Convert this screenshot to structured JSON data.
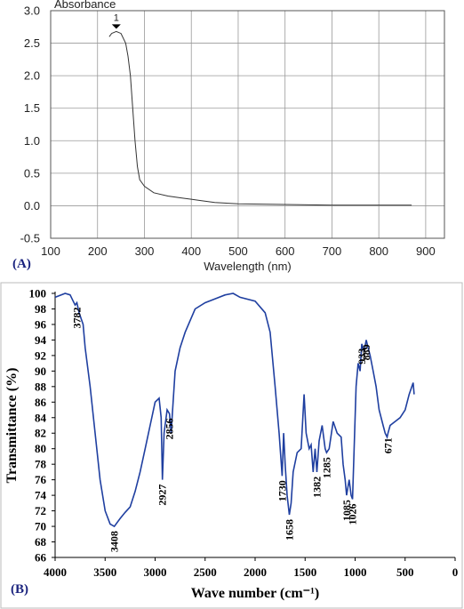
{
  "chart_data": [
    {
      "type": "line",
      "panel_label": "(A)",
      "ylabel": "Absorbance",
      "xlabel": "Wavelength (nm)",
      "color": "#333333",
      "grid": true,
      "xlim": [
        100,
        940
      ],
      "ylim": [
        -0.5,
        3.0
      ],
      "xticks": [
        100,
        200,
        300,
        400,
        500,
        600,
        700,
        800,
        900
      ],
      "yticks": [
        -0.5,
        {
          "value": 0.0,
          "label": "0.0"
        },
        0.5,
        {
          "value": 1.0,
          "label": "1.0"
        },
        1.5,
        {
          "value": 2.0,
          "label": "2.0"
        },
        2.5,
        {
          "value": 3.0,
          "label": "3.0"
        }
      ],
      "x": [
        225,
        230,
        240,
        250,
        260,
        265,
        270,
        275,
        280,
        285,
        290,
        300,
        320,
        350,
        380,
        400,
        420,
        450,
        500,
        600,
        700,
        870
      ],
      "values": [
        2.6,
        2.65,
        2.68,
        2.65,
        2.5,
        2.3,
        2.0,
        1.5,
        1.0,
        0.6,
        0.4,
        0.3,
        0.2,
        0.15,
        0.12,
        0.1,
        0.08,
        0.05,
        0.03,
        0.02,
        0.01,
        0.01
      ],
      "annotations": [
        "1"
      ]
    },
    {
      "type": "line",
      "panel_label": "(B)",
      "ylabel": "Transmittance (%)",
      "xlabel": "Wave number (cm⁻¹)",
      "color": "#1f3fa0",
      "grid": false,
      "xlim": [
        4000,
        0
      ],
      "ylim": [
        66,
        100
      ],
      "xticks": [
        4000,
        3500,
        3000,
        2500,
        2000,
        1500,
        1000,
        500,
        0
      ],
      "yticks": [
        66,
        68,
        70,
        72,
        74,
        76,
        78,
        80,
        82,
        84,
        86,
        88,
        90,
        92,
        94,
        96,
        98,
        100
      ],
      "x": [
        4000,
        3900,
        3850,
        3820,
        3800,
        3782,
        3760,
        3720,
        3700,
        3650,
        3600,
        3550,
        3500,
        3450,
        3408,
        3350,
        3300,
        3250,
        3200,
        3150,
        3100,
        3050,
        3000,
        2960,
        2940,
        2927,
        2910,
        2880,
        2856,
        2840,
        2800,
        2750,
        2700,
        2600,
        2500,
        2400,
        2300,
        2220,
        2150,
        2000,
        1900,
        1850,
        1800,
        1760,
        1730,
        1715,
        1700,
        1680,
        1658,
        1640,
        1620,
        1580,
        1540,
        1510,
        1490,
        1460,
        1440,
        1420,
        1400,
        1382,
        1360,
        1330,
        1300,
        1285,
        1260,
        1220,
        1180,
        1140,
        1120,
        1100,
        1085,
        1060,
        1040,
        1026,
        1010,
        990,
        970,
        950,
        933,
        910,
        889,
        870,
        850,
        820,
        790,
        760,
        720,
        700,
        680,
        671,
        650,
        600,
        550,
        500,
        460,
        420,
        410
      ],
      "values": [
        99.5,
        100,
        99.8,
        99,
        98.5,
        98.8,
        97.5,
        96,
        93,
        88,
        82,
        76,
        72,
        70.3,
        70,
        71,
        71.8,
        72.5,
        74.5,
        77,
        80,
        83,
        86,
        86.5,
        84,
        76,
        82,
        85,
        84.5,
        82,
        90,
        93,
        95,
        98,
        98.8,
        99.3,
        99.8,
        100,
        99.5,
        99,
        97.5,
        95,
        88,
        82,
        76.5,
        82,
        78,
        74,
        71.5,
        73,
        77,
        79.5,
        80,
        87,
        82,
        80,
        80.5,
        77,
        80,
        77,
        81,
        83,
        80,
        79.5,
        80,
        83.5,
        82,
        81.5,
        78,
        76,
        74,
        76,
        74,
        73.5,
        80,
        88,
        91,
        90,
        93.5,
        92.5,
        94,
        93,
        92,
        90,
        88,
        85,
        83,
        82,
        81.5,
        82,
        83,
        83.5,
        84,
        85,
        87,
        88.5,
        87
      ],
      "annotations": [
        "3782",
        "3408",
        "2927",
        "2856",
        "1730",
        "1658",
        "1382",
        "1285",
        "1085",
        "1026",
        "933",
        "889",
        "671"
      ]
    }
  ]
}
